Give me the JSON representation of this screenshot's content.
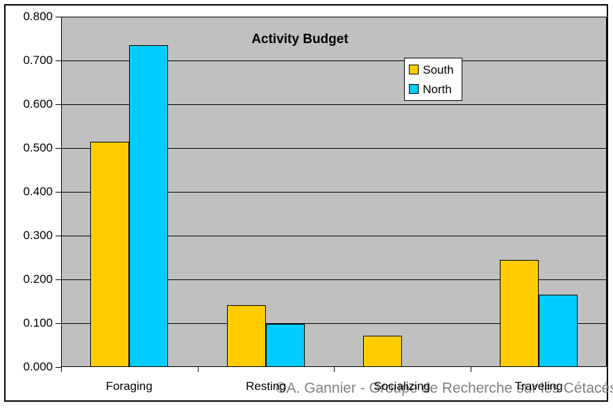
{
  "chart_data": {
    "type": "bar",
    "title": "Activity Budget",
    "categories": [
      "Foraging",
      "Resting",
      "Socializing",
      "Traveling"
    ],
    "series": [
      {
        "name": "South",
        "color": "#FFCC00",
        "values": [
          0.515,
          0.141,
          0.071,
          0.244
        ]
      },
      {
        "name": "North",
        "color": "#00CCFF",
        "values": [
          0.735,
          0.099,
          0,
          0.165
        ]
      }
    ],
    "xlabel": "",
    "ylabel": "",
    "ylim": [
      0,
      0.8
    ],
    "ytick_step": 0.1,
    "ytick_labels": [
      "0.000",
      "0.100",
      "0.200",
      "0.300",
      "0.400",
      "0.500",
      "0.600",
      "0.700",
      "0.800"
    ],
    "grid": true,
    "legend_position": "inside-top-right",
    "plot_background": "#C0C0C0",
    "outer_background": "#FFFFFF",
    "axis_color": "#000000"
  },
  "watermark": {
    "text": "©A. Gannier - Groupe de Recherche sur les Cétacés",
    "color": "#808080"
  }
}
